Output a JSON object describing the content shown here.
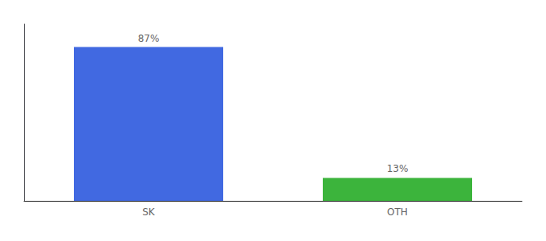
{
  "chart_data": {
    "type": "bar",
    "categories": [
      "SK",
      "OTH"
    ],
    "values": [
      87,
      13
    ],
    "colors": [
      "#4169e1",
      "#3cb43c"
    ],
    "data_labels": true,
    "value_labels": [
      "87%",
      "13%"
    ],
    "ylim": [
      0,
      100
    ],
    "yticks": [],
    "grid": false,
    "tick_labels": "x"
  }
}
